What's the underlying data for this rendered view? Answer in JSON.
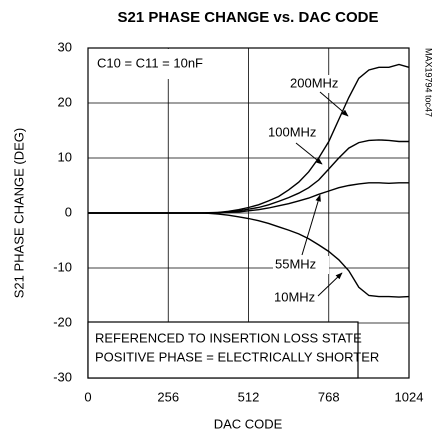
{
  "chart_data": {
    "type": "line",
    "title": "S21 PHASE CHANGE vs. DAC CODE",
    "x_label": "DAC CODE",
    "y_label": "S21 PHASE CHANGE (DEG)",
    "watermark": "MAX19794 toc47",
    "annotations": [
      "C10 = C11 = 10nF",
      "200MHz",
      "100MHz",
      "55MHz",
      "10MHz",
      "REFERENCED TO INSERTION LOSS STATE",
      "POSITIVE PHASE = ELECTRICALLY SHORTER"
    ],
    "x": [
      0,
      32,
      64,
      96,
      128,
      160,
      192,
      224,
      256,
      288,
      320,
      352,
      384,
      416,
      448,
      480,
      512,
      544,
      576,
      608,
      640,
      672,
      704,
      736,
      768,
      800,
      832,
      864,
      896,
      928,
      960,
      992,
      1024
    ],
    "series": [
      {
        "name": "200MHz",
        "color": "#000000",
        "values": [
          0,
          0,
          0,
          0,
          0,
          0,
          0,
          0,
          0,
          0,
          0,
          0,
          0.05,
          0.1,
          0.3,
          0.6,
          1.0,
          1.5,
          2.2,
          3.0,
          4.2,
          5.6,
          7.5,
          10,
          13,
          17,
          21,
          24.5,
          26,
          26.5,
          26.5,
          27,
          26.5
        ]
      },
      {
        "name": "100MHz",
        "color": "#000000",
        "values": [
          0,
          0,
          0,
          0,
          0,
          0,
          0,
          0,
          0,
          0,
          0,
          0,
          0,
          0.1,
          0.2,
          0.4,
          0.7,
          1.0,
          1.5,
          2.1,
          2.8,
          3.6,
          4.6,
          6,
          8,
          10,
          11.8,
          12.8,
          13.2,
          13.3,
          13.2,
          13,
          13
        ]
      },
      {
        "name": "55MHz",
        "color": "#000000",
        "values": [
          0,
          0,
          0,
          0,
          0,
          0,
          0,
          0,
          0,
          0,
          0,
          0,
          0,
          0.05,
          0.1,
          0.2,
          0.4,
          0.6,
          0.9,
          1.3,
          1.7,
          2.2,
          2.7,
          3.4,
          4.0,
          4.6,
          5.0,
          5.3,
          5.5,
          5.5,
          5.4,
          5.5,
          5.5
        ]
      },
      {
        "name": "10MHz",
        "color": "#000000",
        "values": [
          0,
          0,
          0,
          0,
          0,
          0,
          0,
          0,
          0,
          0,
          0,
          0,
          -0.05,
          -0.2,
          -0.4,
          -0.7,
          -1.0,
          -1.4,
          -1.9,
          -2.5,
          -3.1,
          -3.8,
          -4.7,
          -5.8,
          -7.0,
          -8.5,
          -10.5,
          -13.5,
          -15,
          -15.2,
          -15.2,
          -15.3,
          -15.2
        ]
      }
    ],
    "xlim": [
      0,
      1024
    ],
    "xticks": [
      0,
      256,
      512,
      768,
      1024
    ],
    "ylim": [
      -30,
      30
    ],
    "yticks": [
      -30,
      -20,
      -10,
      0,
      10,
      20,
      30
    ],
    "grid": true
  }
}
